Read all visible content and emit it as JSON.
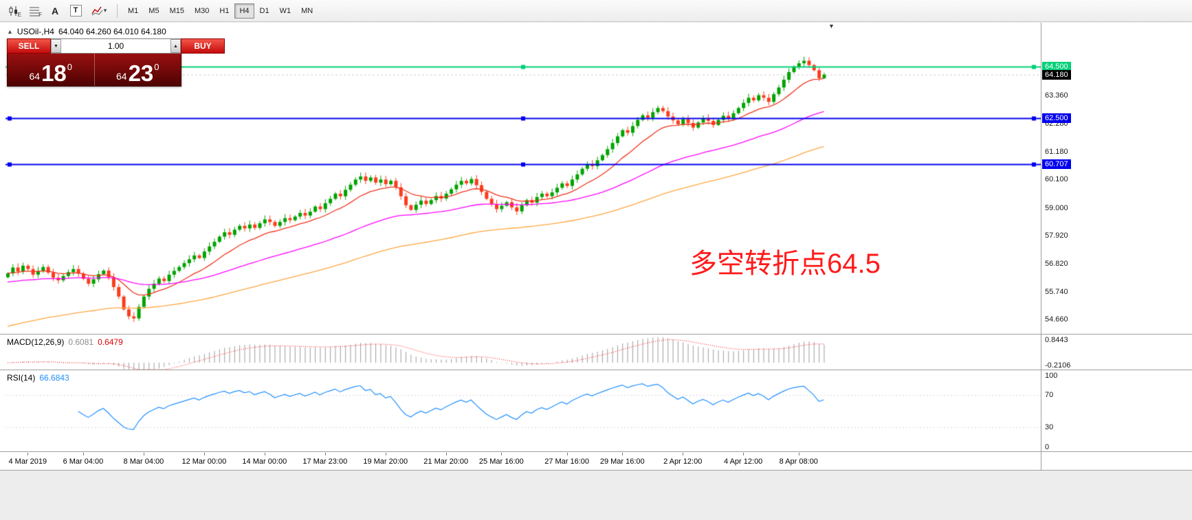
{
  "toolbar": {
    "icons": [
      {
        "name": "candlestick-chart-icon",
        "badge": "E"
      },
      {
        "name": "grid-icon",
        "badge": "F"
      },
      {
        "name": "text-label-icon",
        "glyph": "A"
      },
      {
        "name": "text-box-icon",
        "glyph": "T"
      },
      {
        "name": "indicators-icon",
        "dropdown": "▾"
      }
    ],
    "timeframes": [
      {
        "label": "M1"
      },
      {
        "label": "M5"
      },
      {
        "label": "M15"
      },
      {
        "label": "M30"
      },
      {
        "label": "H1"
      },
      {
        "label": "H4",
        "active": true
      },
      {
        "label": "D1"
      },
      {
        "label": "W1"
      },
      {
        "label": "MN"
      }
    ]
  },
  "symbol_bar": {
    "collapse_icon": "▲",
    "symbol": "USOil-,H4",
    "ohlc": "64.040 64.260 64.010 64.180"
  },
  "trade_panel": {
    "sell_label": "SELL",
    "buy_label": "BUY",
    "volume": "1.00",
    "volume_down": "▼",
    "volume_up": "▲",
    "sell_price": {
      "prefix": "64",
      "big": "18",
      "sup": "0"
    },
    "buy_price": {
      "prefix": "64",
      "big": "23",
      "sup": "0"
    }
  },
  "annotation": {
    "text": "多空转折点64.5",
    "color": "#ff1a1a"
  },
  "shift_marker": "▼",
  "price_axis": {
    "ticks": [
      {
        "label": "63.360",
        "value": 63.36
      },
      {
        "label": "62.280",
        "value": 62.28
      },
      {
        "label": "61.180",
        "value": 61.18
      },
      {
        "label": "60.100",
        "value": 60.1
      },
      {
        "label": "59.000",
        "value": 59.0
      },
      {
        "label": "57.920",
        "value": 57.92
      },
      {
        "label": "56.820",
        "value": 56.82
      },
      {
        "label": "55.740",
        "value": 55.74
      },
      {
        "label": "54.660",
        "value": 54.66
      }
    ],
    "line_labels": [
      {
        "label": "64.500",
        "value": 64.5,
        "bg": "#00d077"
      },
      {
        "label": "62.500",
        "value": 62.5,
        "bg": "#0000ee"
      },
      {
        "label": "60.707",
        "value": 60.707,
        "bg": "#0000ee"
      }
    ],
    "current": {
      "label": "64.180",
      "value": 64.18,
      "bg": "#000000"
    }
  },
  "macd_panel": {
    "title": "MACD(12,26,9)",
    "main_value": "0.6081",
    "signal_value": "0.6479",
    "axis_max": "0.8443",
    "axis_min": "-0.2106"
  },
  "rsi_panel": {
    "title": "RSI(14)",
    "value": "66.6843",
    "ticks": [
      {
        "label": "100",
        "value": 100
      },
      {
        "label": "70",
        "value": 70
      },
      {
        "label": "30",
        "value": 30
      },
      {
        "label": "0",
        "value": 0
      }
    ]
  },
  "time_axis": {
    "labels": [
      {
        "text": "4 Mar 2019",
        "index": 4
      },
      {
        "text": "6 Mar 04:00",
        "index": 15
      },
      {
        "text": "8 Mar 04:00",
        "index": 27
      },
      {
        "text": "12 Mar 00:00",
        "index": 39
      },
      {
        "text": "14 Mar 00:00",
        "index": 51
      },
      {
        "text": "17 Mar 23:00",
        "index": 63
      },
      {
        "text": "19 Mar 20:00",
        "index": 75
      },
      {
        "text": "21 Mar 20:00",
        "index": 87
      },
      {
        "text": "25 Mar 16:00",
        "index": 98
      },
      {
        "text": "27 Mar 16:00",
        "index": 111
      },
      {
        "text": "29 Mar 16:00",
        "index": 122
      },
      {
        "text": "2 Apr 12:00",
        "index": 134
      },
      {
        "text": "4 Apr 12:00",
        "index": 146
      },
      {
        "text": "8 Apr 08:00",
        "index": 157
      }
    ]
  },
  "chart_data": {
    "type": "candlestick",
    "symbol": "USOil-",
    "timeframe": "H4",
    "title": "USOil- H4 with MACD(12,26,9) and RSI(14)",
    "ylim": [
      54.1,
      66.2
    ],
    "up_color": "#00a300",
    "down_color": "#fb3c1e",
    "closes": [
      56.45,
      56.68,
      56.52,
      56.75,
      56.62,
      56.4,
      56.55,
      56.7,
      56.48,
      56.28,
      56.18,
      56.35,
      56.5,
      56.62,
      56.44,
      56.24,
      56.05,
      56.22,
      56.42,
      56.56,
      56.3,
      55.92,
      55.55,
      55.05,
      54.78,
      54.7,
      55.15,
      55.55,
      55.85,
      56.05,
      56.25,
      56.15,
      56.4,
      56.55,
      56.7,
      56.85,
      57.0,
      57.15,
      57.05,
      57.3,
      57.5,
      57.68,
      57.88,
      58.05,
      57.95,
      58.15,
      58.3,
      58.2,
      58.35,
      58.22,
      58.4,
      58.55,
      58.45,
      58.3,
      58.45,
      58.6,
      58.52,
      58.66,
      58.8,
      58.7,
      58.85,
      59.05,
      58.95,
      59.18,
      59.35,
      59.55,
      59.45,
      59.7,
      59.9,
      60.1,
      60.22,
      60.05,
      60.18,
      59.98,
      60.1,
      59.92,
      60.05,
      59.8,
      59.45,
      59.1,
      58.92,
      59.12,
      59.28,
      59.15,
      59.3,
      59.46,
      59.36,
      59.55,
      59.72,
      59.9,
      60.05,
      59.95,
      60.12,
      59.88,
      59.62,
      59.35,
      59.15,
      58.95,
      59.08,
      59.22,
      59.02,
      58.86,
      59.1,
      59.3,
      59.2,
      59.42,
      59.55,
      59.45,
      59.6,
      59.78,
      59.95,
      59.85,
      60.1,
      60.3,
      60.52,
      60.7,
      60.62,
      60.85,
      61.05,
      61.28,
      61.52,
      61.78,
      62.02,
      61.92,
      62.18,
      62.42,
      62.6,
      62.5,
      62.72,
      62.88,
      62.76,
      62.55,
      62.4,
      62.25,
      62.45,
      62.3,
      62.12,
      62.32,
      62.48,
      62.38,
      62.22,
      62.42,
      62.58,
      62.48,
      62.68,
      62.88,
      63.08,
      63.28,
      63.18,
      63.38,
      63.28,
      63.12,
      63.42,
      63.68,
      63.98,
      64.28,
      64.48,
      64.62,
      64.72,
      64.55,
      64.35,
      64.04,
      64.18
    ],
    "last_candle": {
      "open": 64.04,
      "high": 64.26,
      "low": 64.01,
      "close": 64.18
    },
    "moving_averages": [
      {
        "period": 13,
        "color": "#f03018",
        "seed": null
      },
      {
        "period": 48,
        "color": "#ff00ff",
        "seed": 56.1
      },
      {
        "period": 96,
        "color": "#ffa640",
        "seed": 54.35
      }
    ],
    "hlines": [
      {
        "value": 64.5,
        "color": "#00d077"
      },
      {
        "value": 62.5,
        "color": "#0000ee"
      },
      {
        "value": 60.707,
        "color": "#0000ee"
      }
    ],
    "current_price": 64.18,
    "macd": {
      "fast": 12,
      "slow": 26,
      "signal": 9,
      "range": [
        -0.2106,
        0.8443
      ],
      "hist_color": "#9c9c9c",
      "signal_color": "#ff0000",
      "current_main": 0.6081,
      "current_signal": 0.6479
    },
    "rsi": {
      "period": 14,
      "range": [
        0,
        100
      ],
      "levels": [
        70,
        30
      ],
      "color": "#1f8fff",
      "current": 66.6843
    }
  }
}
